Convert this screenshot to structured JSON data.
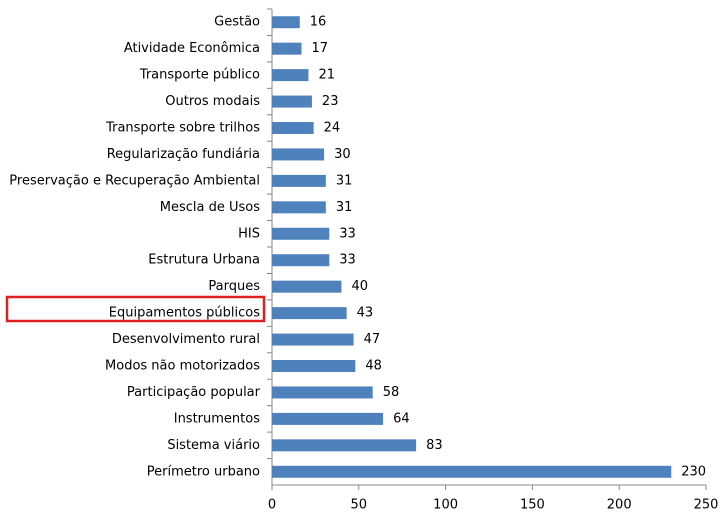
{
  "chart_data": {
    "type": "bar",
    "orientation": "horizontal",
    "categories": [
      "Gestão",
      "Atividade Econômica",
      "Transporte público",
      "Outros modais",
      "Transporte sobre trilhos",
      "Regularização fundiária",
      "Preservação e Recuperação Ambiental",
      "Mescla de Usos",
      "HIS",
      "Estrutura Urbana",
      "Parques",
      "Equipamentos públicos",
      "Desenvolvimento rural",
      "Modos não motorizados",
      "Participação popular",
      "Instrumentos",
      "Sistema viário",
      "Perímetro urbano"
    ],
    "values": [
      16,
      17,
      21,
      23,
      24,
      30,
      31,
      31,
      33,
      33,
      40,
      43,
      47,
      48,
      58,
      64,
      83,
      230
    ],
    "color": "#4f81bd",
    "xlim": [
      0,
      250
    ],
    "xticks": [
      0,
      50,
      100,
      150,
      200,
      250
    ],
    "grid": false
  }
}
